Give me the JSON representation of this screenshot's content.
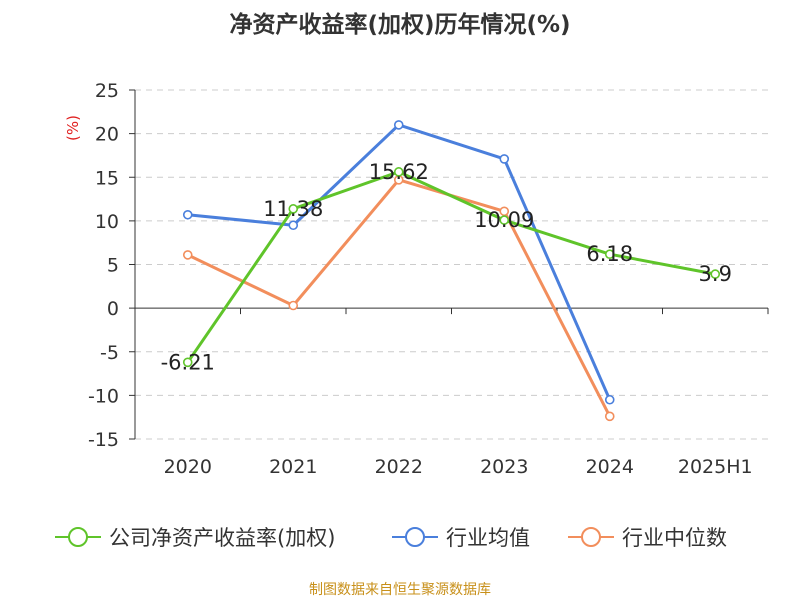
{
  "chart_data": {
    "type": "line",
    "title": "净资产收益率(加权)历年情况(%)",
    "ylabel": "(%)",
    "categories": [
      "2020",
      "2021",
      "2022",
      "2023",
      "2024",
      "2025H1"
    ],
    "yticks": [
      "25",
      "20",
      "15",
      "10",
      "5",
      "0",
      "-5",
      "-10",
      "-15"
    ],
    "ylim": [
      -15,
      25
    ],
    "grid": true,
    "legend_position": "bottom",
    "series": [
      {
        "name": "公司净资产收益率(加权)",
        "color": "#5fc42a",
        "values": [
          -6.21,
          11.38,
          15.62,
          10.09,
          6.18,
          3.9
        ],
        "labels": [
          "-6.21",
          "11.38",
          "15.62",
          "10.09",
          "6.18",
          "3.9"
        ]
      },
      {
        "name": "行业均值",
        "color": "#4a7fdc",
        "values": [
          10.7,
          9.5,
          21.0,
          17.1,
          -10.5,
          null
        ]
      },
      {
        "name": "行业中位数",
        "color": "#f28e5c",
        "values": [
          6.1,
          0.3,
          14.7,
          11.1,
          -12.4,
          null
        ]
      }
    ],
    "source": "制图数据来自恒生聚源数据库"
  }
}
